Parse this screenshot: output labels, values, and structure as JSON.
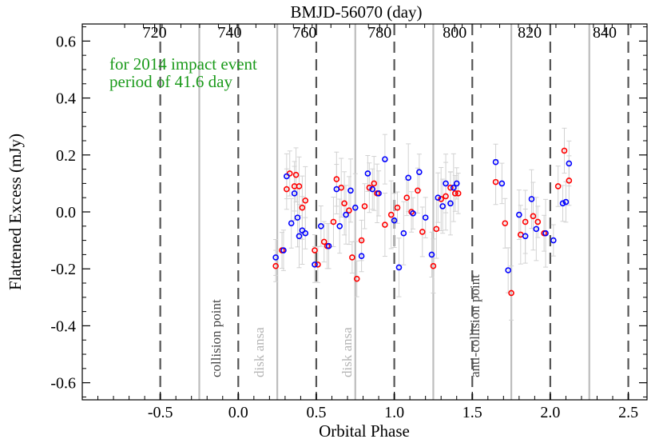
{
  "chart_data": {
    "type": "scatter",
    "xlabel": "Orbital Phase",
    "ylabel": "Flattened Excess (mJy)",
    "top_axis_label": "BMJD-56070 (day)",
    "xlim": [
      -1.0,
      2.62
    ],
    "ylim": [
      -0.66,
      0.66
    ],
    "x_ticks": [
      "-0.5",
      "0.0",
      "0.5",
      "1.0",
      "1.5",
      "2.0",
      "2.5"
    ],
    "x_tick_values": [
      -0.5,
      0.0,
      0.5,
      1.0,
      1.5,
      2.0,
      2.5
    ],
    "y_ticks": [
      "-0.6",
      "-0.4",
      "-0.2",
      "0.0",
      "0.2",
      "0.4",
      "0.6"
    ],
    "y_tick_values": [
      -0.6,
      -0.4,
      -0.2,
      0.0,
      0.2,
      0.4,
      0.6
    ],
    "top_ticks": [
      "720",
      "740",
      "760",
      "780",
      "800",
      "820",
      "840"
    ],
    "top_tick_values": [
      720,
      740,
      760,
      780,
      800,
      820,
      840
    ],
    "top_axis_mapping": {
      "bmjd_at_phase_zero": 742.3,
      "period_days": 41.6
    },
    "annotations": {
      "line1": "for 2014 impact event",
      "line2": "period of 41.6 day",
      "collision": "collision point",
      "anti_collision": "anti-collision point",
      "disk_ansa_1": "disk ansa",
      "disk_ansa_2": "disk ansa"
    },
    "dashed_lines": [
      -0.5,
      0.0,
      0.5,
      1.0,
      1.5,
      2.0,
      2.5
    ],
    "solid_lines": [
      -0.25,
      0.25,
      0.75,
      1.25,
      1.75,
      2.25
    ],
    "colors": {
      "red": "#ff0000",
      "blue": "#0000ff",
      "errorbar": "#d2d2d2",
      "dashed": "#555555",
      "solid": "#bdbdbd",
      "annotation": "#1a9a1a"
    },
    "series": [
      {
        "color": "red",
        "x": [
          0.24,
          0.28,
          0.31,
          0.33,
          0.36,
          0.37,
          0.39,
          0.41,
          0.43,
          0.49,
          0.51,
          0.55,
          0.57,
          0.61,
          0.63,
          0.66,
          0.68,
          0.71,
          0.73,
          0.76,
          0.79,
          0.81,
          0.84,
          0.87,
          0.89,
          0.94,
          0.98,
          1.02,
          1.08,
          1.11,
          1.15,
          1.18,
          1.25,
          1.27,
          1.3,
          1.33,
          1.36,
          1.39,
          1.41,
          1.65,
          1.71,
          1.75,
          1.81,
          1.84,
          1.89,
          1.92,
          1.96,
          2.05,
          2.09,
          2.12
        ],
        "y": [
          -0.19,
          -0.135,
          0.08,
          0.135,
          0.09,
          0.13,
          0.09,
          0.015,
          0.04,
          -0.135,
          -0.185,
          -0.105,
          -0.12,
          -0.035,
          0.115,
          0.085,
          0.03,
          0.005,
          -0.16,
          -0.235,
          -0.1,
          0.02,
          0.085,
          0.1,
          0.065,
          -0.045,
          -0.01,
          0.015,
          0.05,
          0.0,
          0.075,
          -0.07,
          -0.19,
          -0.06,
          0.045,
          0.055,
          0.085,
          0.065,
          0.065,
          0.105,
          -0.04,
          -0.285,
          -0.08,
          -0.035,
          -0.015,
          -0.035,
          -0.075,
          0.09,
          0.215,
          0.11
        ]
      },
      {
        "color": "blue",
        "x": [
          0.24,
          0.29,
          0.31,
          0.34,
          0.36,
          0.38,
          0.39,
          0.41,
          0.43,
          0.49,
          0.53,
          0.58,
          0.63,
          0.65,
          0.69,
          0.72,
          0.75,
          0.79,
          0.83,
          0.86,
          0.9,
          0.94,
          1.0,
          1.03,
          1.06,
          1.09,
          1.12,
          1.16,
          1.2,
          1.24,
          1.28,
          1.31,
          1.33,
          1.36,
          1.38,
          1.4,
          1.65,
          1.69,
          1.73,
          1.8,
          1.84,
          1.88,
          1.91,
          1.97,
          2.02,
          2.08,
          2.1,
          2.12
        ],
        "y": [
          -0.16,
          -0.135,
          0.125,
          -0.04,
          0.065,
          -0.02,
          -0.085,
          -0.065,
          -0.075,
          -0.185,
          -0.05,
          -0.12,
          0.08,
          -0.05,
          -0.01,
          0.075,
          0.015,
          -0.155,
          0.135,
          0.08,
          0.065,
          0.185,
          -0.03,
          -0.195,
          -0.075,
          0.12,
          -0.005,
          0.14,
          -0.02,
          -0.15,
          0.05,
          0.02,
          0.1,
          0.03,
          0.085,
          0.1,
          0.175,
          0.1,
          -0.205,
          -0.01,
          -0.085,
          0.045,
          -0.06,
          -0.075,
          -0.1,
          0.03,
          0.035,
          0.17
        ]
      }
    ]
  }
}
